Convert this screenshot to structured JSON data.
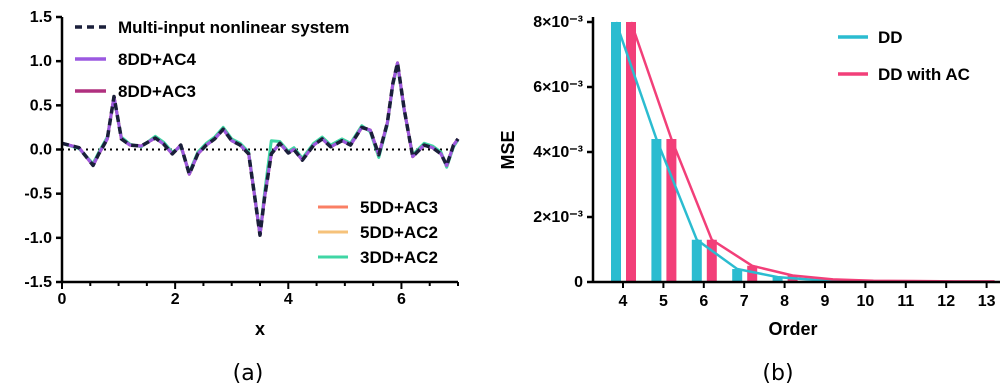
{
  "chart_data": [
    {
      "panel_label": "(a)",
      "type": "line",
      "xlabel": "x",
      "ylabel": "",
      "xlim": [
        0,
        7
      ],
      "ylim": [
        -1.5,
        1.5
      ],
      "xticks": [
        "0",
        "2",
        "4",
        "6"
      ],
      "yticks": [
        "-1.5",
        "-1.0",
        "-0.5",
        "0.0",
        "0.5",
        "1.0",
        "1.5"
      ],
      "zero_line": "dotted",
      "legend_top": [
        "Multi-input nonlinear system",
        "8DD+AC4",
        "8DD+AC3"
      ],
      "legend_bottom": [
        "5DD+AC3",
        "5DD+AC2",
        "3DD+AC2"
      ],
      "series": [
        {
          "name": "Multi-input nonlinear system",
          "color": "#1a1f3a",
          "style": "dashed"
        },
        {
          "name": "8DD+AC4",
          "color": "#9b59e0",
          "style": "solid"
        },
        {
          "name": "8DD+AC3",
          "color": "#b0307f",
          "style": "solid"
        },
        {
          "name": "5DD+AC3",
          "color": "#fa7f64",
          "style": "solid"
        },
        {
          "name": "5DD+AC2",
          "color": "#f6c27a",
          "style": "solid"
        },
        {
          "name": "3DD+AC2",
          "color": "#3fd6a4",
          "style": "solid"
        }
      ],
      "x": [
        0.0,
        0.3,
        0.55,
        0.65,
        0.8,
        0.92,
        1.05,
        1.2,
        1.4,
        1.65,
        1.8,
        1.95,
        2.1,
        2.25,
        2.4,
        2.55,
        2.7,
        2.85,
        3.0,
        3.15,
        3.3,
        3.42,
        3.5,
        3.58,
        3.7,
        3.85,
        4.0,
        4.1,
        4.25,
        4.45,
        4.6,
        4.75,
        4.95,
        5.1,
        5.3,
        5.45,
        5.6,
        5.75,
        5.85,
        5.93,
        6.05,
        6.2,
        6.4,
        6.55,
        6.7,
        6.8,
        6.92,
        7.0
      ],
      "reference_y": [
        0.07,
        0.02,
        -0.18,
        -0.05,
        0.12,
        0.6,
        0.12,
        0.05,
        0.04,
        0.13,
        0.06,
        -0.05,
        0.05,
        -0.28,
        -0.05,
        0.05,
        0.12,
        0.23,
        0.1,
        0.05,
        -0.05,
        -0.6,
        -0.97,
        -0.55,
        -0.05,
        0.07,
        -0.04,
        0.0,
        -0.12,
        0.05,
        0.12,
        0.03,
        0.1,
        0.05,
        0.25,
        0.22,
        -0.06,
        0.3,
        0.75,
        0.98,
        0.45,
        -0.08,
        0.05,
        0.02,
        -0.05,
        -0.18,
        0.05,
        0.12
      ],
      "3DD+AC2_y": [
        0.07,
        0.01,
        -0.16,
        -0.03,
        0.14,
        0.58,
        0.14,
        0.06,
        0.03,
        0.15,
        0.08,
        -0.03,
        0.03,
        -0.26,
        -0.03,
        0.07,
        0.14,
        0.25,
        0.12,
        0.07,
        -0.03,
        -0.58,
        -0.95,
        -0.5,
        0.1,
        0.09,
        -0.02,
        0.02,
        -0.1,
        0.07,
        0.14,
        0.05,
        0.12,
        0.07,
        0.27,
        0.2,
        -0.09,
        0.28,
        0.73,
        0.96,
        0.43,
        -0.06,
        0.07,
        0.04,
        -0.03,
        -0.2,
        0.03,
        0.11
      ]
    },
    {
      "panel_label": "(b)",
      "type": "bar",
      "xlabel": "Order",
      "ylabel": "MSE",
      "categories": [
        "4",
        "5",
        "6",
        "7",
        "8",
        "9",
        "10",
        "11",
        "12",
        "13"
      ],
      "ylim": [
        0,
        0.008
      ],
      "yticks": [
        "0",
        "2×10⁻³",
        "4×10⁻³",
        "6×10⁻³",
        "8×10⁻³"
      ],
      "series": [
        {
          "name": "DD",
          "color": "#2bbcd0",
          "values": [
            0.008,
            0.0044,
            0.0013,
            0.0004,
            0.00015,
            6e-05,
            3e-05,
            2e-05,
            1e-05,
            1e-05
          ]
        },
        {
          "name": "DD with AC",
          "color": "#f23f79",
          "values": [
            0.008,
            0.0044,
            0.0013,
            0.0005,
            0.0002,
            8e-05,
            4e-05,
            3e-05,
            2e-05,
            2e-05
          ]
        }
      ]
    }
  ]
}
